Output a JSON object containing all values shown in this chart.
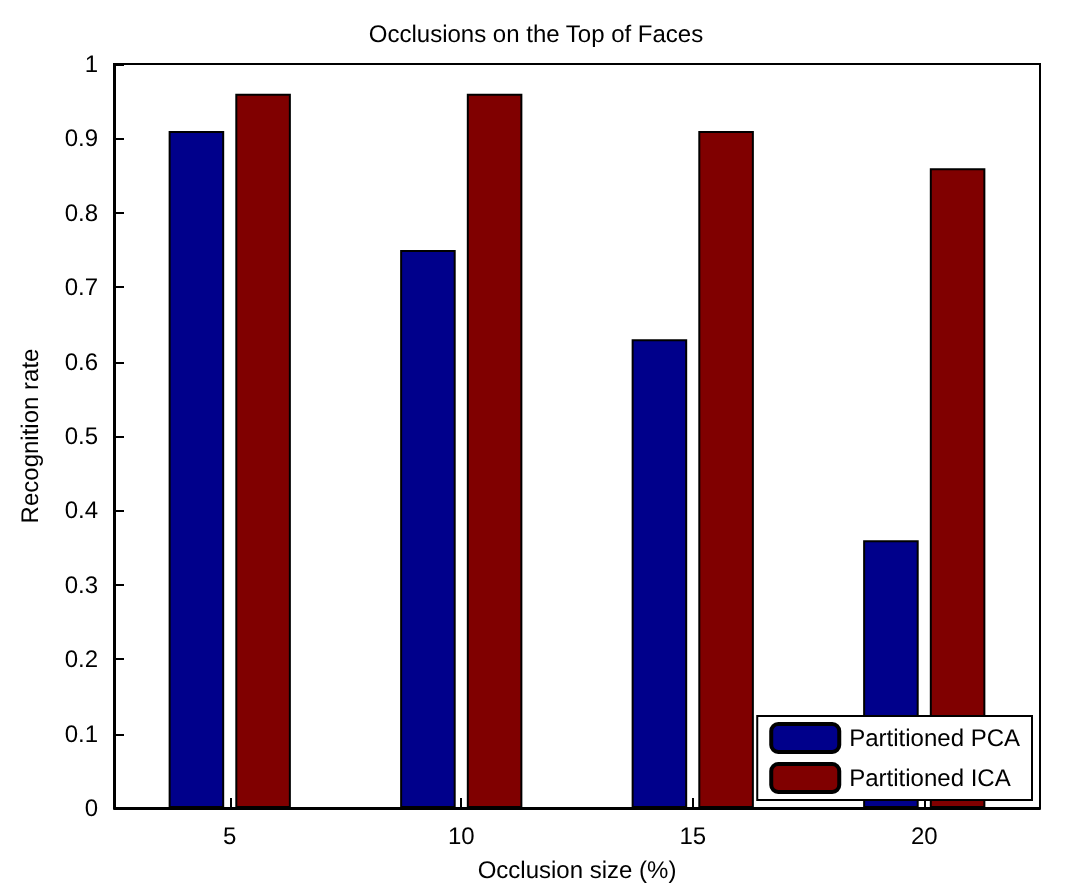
{
  "chart_data": {
    "type": "bar",
    "title": "Occlusions on the Top of Faces",
    "xlabel": "Occlusion size (%)",
    "ylabel": "Recognition rate",
    "categories": [
      "5",
      "10",
      "15",
      "20"
    ],
    "series": [
      {
        "name": "Partitioned PCA",
        "color": "#00008b",
        "values": [
          0.91,
          0.75,
          0.63,
          0.36
        ]
      },
      {
        "name": "Partitioned ICA",
        "color": "#800000",
        "values": [
          0.96,
          0.96,
          0.91,
          0.86
        ]
      }
    ],
    "ylim": [
      0,
      1
    ],
    "yticks": [
      0,
      0.1,
      0.2,
      0.3,
      0.4,
      0.5,
      0.6,
      0.7,
      0.8,
      0.9,
      1
    ],
    "grid": false,
    "legend": "bottom right"
  }
}
